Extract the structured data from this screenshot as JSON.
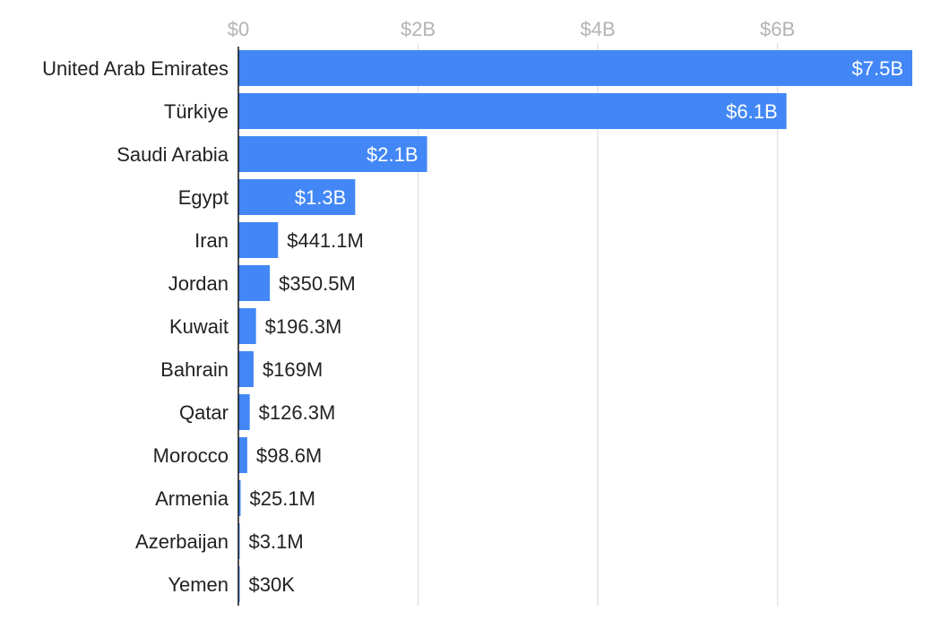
{
  "chart_data": {
    "type": "bar",
    "orientation": "horizontal",
    "title": "",
    "xlabel": "",
    "ylabel": "",
    "xlim": [
      0,
      7500000000
    ],
    "x_ticks": [
      {
        "value": 0,
        "label": "$0"
      },
      {
        "value": 2000000000,
        "label": "$2B"
      },
      {
        "value": 4000000000,
        "label": "$4B"
      },
      {
        "value": 6000000000,
        "label": "$6B"
      }
    ],
    "grid": true,
    "bar_color": "#4287f5",
    "inside_label_color": "#ffffff",
    "outside_label_color": "#222222",
    "categories": [
      "United Arab Emirates",
      "Türkiye",
      "Saudi Arabia",
      "Egypt",
      "Iran",
      "Jordan",
      "Kuwait",
      "Bahrain",
      "Qatar",
      "Morocco",
      "Armenia",
      "Azerbaijan",
      "Yemen"
    ],
    "values": [
      7500000000,
      6100000000,
      2100000000,
      1300000000,
      441100000,
      350500000,
      196300000,
      169000000,
      126300000,
      98600000,
      25100000,
      3100000,
      30000
    ],
    "value_labels": [
      "$7.5B",
      "$6.1B",
      "$2.1B",
      "$1.3B",
      "$441.1M",
      "$350.5M",
      "$196.3M",
      "$169M",
      "$126.3M",
      "$98.6M",
      "$25.1M",
      "$3.1M",
      "$30K"
    ]
  }
}
